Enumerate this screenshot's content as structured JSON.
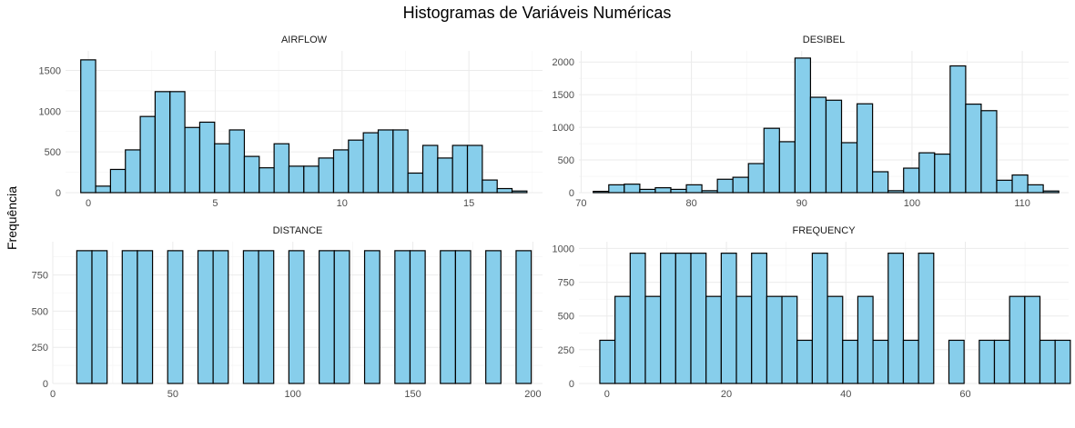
{
  "chart_data": {
    "type": "bar",
    "title": "Histogramas de Variáveis Numéricas",
    "ylabel": "Frequência",
    "bar_fill": "#87CEEB",
    "bar_stroke": "#000000",
    "grid": true,
    "panels": [
      {
        "name": "AIRFLOW",
        "xlim": [
          -0.9,
          17.9
        ],
        "ylim": [
          0,
          1740
        ],
        "xticks": [
          0,
          5,
          10,
          15
        ],
        "yticks": [
          0,
          500,
          1000,
          1500
        ],
        "bins": {
          "start": -0.3,
          "width": 0.5862
        },
        "counts": [
          1630,
          80,
          285,
          525,
          935,
          1240,
          1240,
          800,
          865,
          600,
          770,
          445,
          305,
          600,
          325,
          325,
          425,
          525,
          645,
          735,
          770,
          770,
          240,
          580,
          425,
          580,
          580,
          155,
          50,
          20
        ]
      },
      {
        "name": "DESIBEL",
        "xlim": [
          69.8,
          114.2
        ],
        "ylim": [
          0,
          2170
        ],
        "xticks": [
          70,
          80,
          90,
          100,
          110
        ],
        "yticks": [
          0,
          500,
          1000,
          1500,
          2000
        ],
        "bins": {
          "start": 71.1,
          "width": 1.4069
        },
        "counts": [
          20,
          120,
          130,
          50,
          75,
          50,
          120,
          30,
          205,
          235,
          445,
          985,
          780,
          2060,
          1460,
          1415,
          765,
          1360,
          320,
          30,
          375,
          610,
          590,
          1940,
          1355,
          1255,
          190,
          270,
          120,
          25
        ]
      },
      {
        "name": "DISTANCE",
        "xlim": [
          0,
          204
        ],
        "ylim": [
          0,
          980
        ],
        "xticks": [
          0,
          50,
          100,
          150,
          200
        ],
        "yticks": [
          0,
          250,
          500,
          750
        ],
        "bins": {
          "start": 10,
          "width": 6.31
        },
        "counts": [
          918,
          918,
          0,
          918,
          918,
          0,
          918,
          0,
          918,
          918,
          0,
          918,
          918,
          0,
          918,
          0,
          918,
          918,
          0,
          918,
          0,
          918,
          918,
          0,
          918,
          918,
          0,
          918,
          0,
          918
        ]
      },
      {
        "name": "FREQUENCY",
        "xlim": [
          -4.7,
          77.3
        ],
        "ylim": [
          0,
          1050
        ],
        "xticks": [
          0,
          20,
          40,
          60
        ],
        "yticks": [
          0,
          250,
          500,
          750,
          1000
        ],
        "bins": {
          "start": -1.2,
          "width": 2.5414
        },
        "counts": [
          320,
          645,
          965,
          645,
          965,
          965,
          965,
          645,
          965,
          645,
          965,
          645,
          645,
          320,
          965,
          645,
          320,
          645,
          320,
          965,
          320,
          965,
          0,
          320,
          0,
          320,
          320,
          645,
          645,
          320,
          320
        ]
      }
    ]
  }
}
